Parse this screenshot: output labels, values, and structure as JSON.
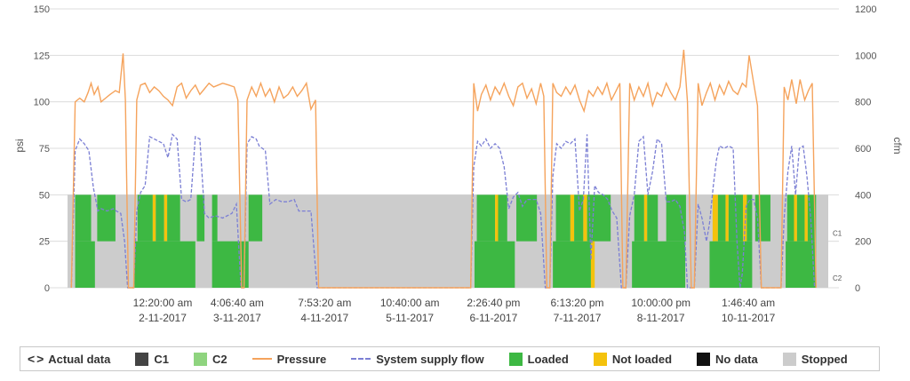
{
  "legend": {
    "actual_data": "Actual data",
    "c1": "C1",
    "c2": "C2",
    "pressure": "Pressure",
    "system_supply_flow": "System supply flow",
    "loaded": "Loaded",
    "not_loaded": "Not loaded",
    "no_data": "No data",
    "stopped": "Stopped"
  },
  "chart_data": {
    "type": "line",
    "ylabel_left": "psi",
    "ylabel_right": "cfm",
    "ylim_left": [
      0,
      150
    ],
    "ylim_right": [
      0,
      1200
    ],
    "yticks_left": [
      "0",
      "25",
      "50",
      "75",
      "100",
      "125",
      "150"
    ],
    "yticks_right": [
      "0",
      "200",
      "400",
      "600",
      "800",
      "1000",
      "1200"
    ],
    "xticks": [
      {
        "time": "12:20:00 am",
        "date": "2-11-2017"
      },
      {
        "time": "4:06:40 am",
        "date": "3-11-2017"
      },
      {
        "time": "7:53:20 am",
        "date": "4-11-2017"
      },
      {
        "time": "10:40:00 am",
        "date": "5-11-2017"
      },
      {
        "time": "2:26:40 pm",
        "date": "6-11-2017"
      },
      {
        "time": "6:13:20 pm",
        "date": "7-11-2017"
      },
      {
        "time": "10:00:00 pm",
        "date": "8-11-2017"
      },
      {
        "time": "1:46:40 am",
        "date": "10-11-2017"
      }
    ],
    "compressor_labels": [
      "C1",
      "C2"
    ],
    "colors": {
      "pressure": "#f5a35c",
      "flow": "#7b7fd4",
      "loaded": "#3db843",
      "not_loaded": "#f4c20d",
      "no_data": "#111111",
      "stopped": "#cccccc",
      "c1": "#444444",
      "c2": "#8fd47f",
      "grid": "#dcdcdc"
    },
    "x_range": [
      0,
      100
    ],
    "c1_segments": [
      {
        "start": 1.0,
        "end": 3.1,
        "state": "loaded"
      },
      {
        "start": 3.9,
        "end": 6.3,
        "state": "loaded"
      },
      {
        "start": 9.2,
        "end": 11.2,
        "state": "loaded"
      },
      {
        "start": 11.2,
        "end": 11.6,
        "state": "not_loaded"
      },
      {
        "start": 11.6,
        "end": 12.7,
        "state": "loaded"
      },
      {
        "start": 12.7,
        "end": 13.1,
        "state": "not_loaded"
      },
      {
        "start": 13.1,
        "end": 14.8,
        "state": "loaded"
      },
      {
        "start": 17.0,
        "end": 18.0,
        "state": "loaded"
      },
      {
        "start": 19.0,
        "end": 19.7,
        "state": "loaded"
      },
      {
        "start": 23.8,
        "end": 25.6,
        "state": "loaded"
      },
      {
        "start": 53.8,
        "end": 56.2,
        "state": "loaded"
      },
      {
        "start": 56.2,
        "end": 56.6,
        "state": "not_loaded"
      },
      {
        "start": 56.6,
        "end": 57.8,
        "state": "loaded"
      },
      {
        "start": 59.0,
        "end": 61.7,
        "state": "loaded"
      },
      {
        "start": 64.2,
        "end": 66.1,
        "state": "loaded"
      },
      {
        "start": 66.1,
        "end": 66.6,
        "state": "not_loaded"
      },
      {
        "start": 66.6,
        "end": 67.8,
        "state": "loaded"
      },
      {
        "start": 67.8,
        "end": 68.3,
        "state": "not_loaded"
      },
      {
        "start": 68.3,
        "end": 71.4,
        "state": "loaded"
      },
      {
        "start": 74.5,
        "end": 75.8,
        "state": "loaded"
      },
      {
        "start": 75.8,
        "end": 76.2,
        "state": "not_loaded"
      },
      {
        "start": 76.2,
        "end": 77.6,
        "state": "loaded"
      },
      {
        "start": 78.7,
        "end": 81.3,
        "state": "loaded"
      },
      {
        "start": 84.8,
        "end": 85.5,
        "state": "not_loaded"
      },
      {
        "start": 85.5,
        "end": 86.5,
        "state": "loaded"
      },
      {
        "start": 86.5,
        "end": 86.9,
        "state": "not_loaded"
      },
      {
        "start": 86.9,
        "end": 88.8,
        "state": "loaded"
      },
      {
        "start": 88.8,
        "end": 89.3,
        "state": "not_loaded"
      },
      {
        "start": 89.3,
        "end": 90.0,
        "state": "loaded"
      },
      {
        "start": 90.4,
        "end": 92.4,
        "state": "loaded"
      },
      {
        "start": 94.6,
        "end": 95.5,
        "state": "loaded"
      },
      {
        "start": 95.5,
        "end": 95.9,
        "state": "not_loaded"
      },
      {
        "start": 95.9,
        "end": 96.9,
        "state": "loaded"
      },
      {
        "start": 96.9,
        "end": 97.3,
        "state": "not_loaded"
      },
      {
        "start": 97.3,
        "end": 98.4,
        "state": "loaded"
      }
    ],
    "c2_segments": [
      {
        "start": 1.0,
        "end": 3.6,
        "state": "loaded"
      },
      {
        "start": 8.8,
        "end": 16.8,
        "state": "loaded"
      },
      {
        "start": 19.0,
        "end": 23.8,
        "state": "loaded"
      },
      {
        "start": 53.5,
        "end": 58.8,
        "state": "loaded"
      },
      {
        "start": 63.8,
        "end": 68.8,
        "state": "loaded"
      },
      {
        "start": 68.8,
        "end": 69.3,
        "state": "not_loaded"
      },
      {
        "start": 74.2,
        "end": 81.2,
        "state": "loaded"
      },
      {
        "start": 84.4,
        "end": 90.0,
        "state": "loaded"
      },
      {
        "start": 94.4,
        "end": 98.4,
        "state": "loaded"
      }
    ],
    "pressure_series": [
      [
        0.5,
        0
      ],
      [
        1.0,
        100
      ],
      [
        1.6,
        102
      ],
      [
        2.2,
        100
      ],
      [
        2.7,
        105
      ],
      [
        3.1,
        110
      ],
      [
        3.5,
        104
      ],
      [
        4.0,
        108
      ],
      [
        4.4,
        100
      ],
      [
        5.0,
        102
      ],
      [
        5.6,
        104
      ],
      [
        6.3,
        106
      ],
      [
        6.8,
        105
      ],
      [
        7.3,
        126
      ],
      [
        7.6,
        101
      ],
      [
        8.0,
        0
      ],
      [
        8.7,
        0
      ],
      [
        9.1,
        101
      ],
      [
        9.6,
        109
      ],
      [
        10.2,
        110
      ],
      [
        10.8,
        105
      ],
      [
        11.4,
        108
      ],
      [
        12.0,
        106
      ],
      [
        12.6,
        103
      ],
      [
        13.2,
        101
      ],
      [
        13.8,
        98
      ],
      [
        14.4,
        108
      ],
      [
        15.0,
        110
      ],
      [
        15.6,
        102
      ],
      [
        16.2,
        106
      ],
      [
        16.8,
        109
      ],
      [
        17.4,
        104
      ],
      [
        18.0,
        107
      ],
      [
        18.6,
        110
      ],
      [
        19.2,
        108
      ],
      [
        19.8,
        109
      ],
      [
        20.4,
        110
      ],
      [
        21.2,
        109
      ],
      [
        21.9,
        108
      ],
      [
        22.4,
        101
      ],
      [
        22.9,
        0
      ],
      [
        23.2,
        0
      ],
      [
        23.6,
        101
      ],
      [
        24.2,
        108
      ],
      [
        24.8,
        103
      ],
      [
        25.4,
        110
      ],
      [
        26.0,
        103
      ],
      [
        26.6,
        107
      ],
      [
        27.2,
        100
      ],
      [
        27.8,
        108
      ],
      [
        28.4,
        102
      ],
      [
        29.0,
        104
      ],
      [
        29.6,
        108
      ],
      [
        30.2,
        103
      ],
      [
        30.8,
        106
      ],
      [
        31.4,
        110
      ],
      [
        32.0,
        96
      ],
      [
        32.6,
        101
      ],
      [
        33.0,
        0
      ],
      [
        53.0,
        0
      ],
      [
        53.4,
        110
      ],
      [
        53.9,
        95
      ],
      [
        54.4,
        104
      ],
      [
        55.0,
        109
      ],
      [
        55.6,
        101
      ],
      [
        56.2,
        108
      ],
      [
        56.8,
        104
      ],
      [
        57.4,
        110
      ],
      [
        58.0,
        103
      ],
      [
        58.6,
        98
      ],
      [
        59.2,
        108
      ],
      [
        59.8,
        110
      ],
      [
        60.4,
        102
      ],
      [
        61.0,
        107
      ],
      [
        61.6,
        99
      ],
      [
        62.2,
        110
      ],
      [
        62.6,
        103
      ],
      [
        63.0,
        0
      ],
      [
        63.4,
        0
      ],
      [
        63.8,
        110
      ],
      [
        64.3,
        105
      ],
      [
        64.9,
        103
      ],
      [
        65.5,
        108
      ],
      [
        66.1,
        104
      ],
      [
        66.7,
        109
      ],
      [
        67.3,
        101
      ],
      [
        67.9,
        95
      ],
      [
        68.5,
        106
      ],
      [
        69.1,
        103
      ],
      [
        69.7,
        108
      ],
      [
        70.3,
        104
      ],
      [
        70.9,
        110
      ],
      [
        71.5,
        101
      ],
      [
        72.0,
        105
      ],
      [
        72.6,
        110
      ],
      [
        73.0,
        0
      ],
      [
        73.4,
        0
      ],
      [
        73.9,
        110
      ],
      [
        74.5,
        101
      ],
      [
        75.1,
        108
      ],
      [
        75.7,
        103
      ],
      [
        76.3,
        110
      ],
      [
        76.9,
        98
      ],
      [
        77.5,
        105
      ],
      [
        78.1,
        103
      ],
      [
        78.7,
        110
      ],
      [
        79.3,
        105
      ],
      [
        79.9,
        101
      ],
      [
        80.5,
        108
      ],
      [
        81.0,
        128
      ],
      [
        81.5,
        100
      ],
      [
        82.0,
        0
      ],
      [
        82.4,
        0
      ],
      [
        82.9,
        110
      ],
      [
        83.4,
        98
      ],
      [
        84.0,
        105
      ],
      [
        84.5,
        110
      ],
      [
        85.1,
        101
      ],
      [
        85.7,
        109
      ],
      [
        86.3,
        104
      ],
      [
        86.9,
        111
      ],
      [
        87.5,
        106
      ],
      [
        88.1,
        104
      ],
      [
        88.7,
        110
      ],
      [
        89.2,
        108
      ],
      [
        89.6,
        125
      ],
      [
        90.2,
        110
      ],
      [
        90.7,
        98
      ],
      [
        91.2,
        0
      ],
      [
        93.8,
        0
      ],
      [
        94.2,
        108
      ],
      [
        94.7,
        101
      ],
      [
        95.2,
        112
      ],
      [
        95.8,
        99
      ],
      [
        96.3,
        112
      ],
      [
        96.9,
        101
      ],
      [
        97.4,
        106
      ],
      [
        97.9,
        110
      ],
      [
        98.4,
        0
      ]
    ],
    "flow_series": [
      [
        0.5,
        0
      ],
      [
        1.0,
        590
      ],
      [
        1.6,
        640
      ],
      [
        2.2,
        620
      ],
      [
        2.8,
        590
      ],
      [
        3.4,
        430
      ],
      [
        4.0,
        330
      ],
      [
        4.4,
        340
      ],
      [
        5.2,
        330
      ],
      [
        6.0,
        340
      ],
      [
        6.4,
        330
      ],
      [
        7.0,
        320
      ],
      [
        7.5,
        200
      ],
      [
        7.9,
        0
      ],
      [
        8.7,
        0
      ],
      [
        9.1,
        330
      ],
      [
        9.6,
        410
      ],
      [
        10.2,
        440
      ],
      [
        10.8,
        650
      ],
      [
        11.4,
        640
      ],
      [
        12.0,
        630
      ],
      [
        12.6,
        620
      ],
      [
        13.2,
        560
      ],
      [
        13.8,
        660
      ],
      [
        14.4,
        640
      ],
      [
        15.0,
        380
      ],
      [
        15.6,
        370
      ],
      [
        16.2,
        380
      ],
      [
        16.8,
        650
      ],
      [
        17.4,
        640
      ],
      [
        18.0,
        320
      ],
      [
        18.6,
        300
      ],
      [
        19.4,
        310
      ],
      [
        20.4,
        300
      ],
      [
        21.6,
        320
      ],
      [
        22.2,
        360
      ],
      [
        22.8,
        0
      ],
      [
        23.2,
        0
      ],
      [
        23.6,
        620
      ],
      [
        24.2,
        650
      ],
      [
        24.8,
        640
      ],
      [
        25.2,
        610
      ],
      [
        26.0,
        590
      ],
      [
        26.6,
        360
      ],
      [
        27.4,
        380
      ],
      [
        28.2,
        370
      ],
      [
        29.0,
        370
      ],
      [
        29.8,
        380
      ],
      [
        30.4,
        330
      ],
      [
        31.2,
        330
      ],
      [
        32.0,
        330
      ],
      [
        32.8,
        0
      ],
      [
        53.0,
        0
      ],
      [
        53.4,
        520
      ],
      [
        53.9,
        630
      ],
      [
        54.4,
        610
      ],
      [
        55.0,
        640
      ],
      [
        55.6,
        600
      ],
      [
        56.2,
        620
      ],
      [
        56.8,
        600
      ],
      [
        57.4,
        520
      ],
      [
        58.0,
        340
      ],
      [
        58.6,
        390
      ],
      [
        59.2,
        410
      ],
      [
        59.8,
        350
      ],
      [
        60.4,
        380
      ],
      [
        61.0,
        380
      ],
      [
        61.6,
        380
      ],
      [
        62.2,
        320
      ],
      [
        62.8,
        0
      ],
      [
        63.4,
        0
      ],
      [
        63.8,
        480
      ],
      [
        64.3,
        620
      ],
      [
        64.9,
        600
      ],
      [
        65.5,
        630
      ],
      [
        66.1,
        620
      ],
      [
        66.7,
        640
      ],
      [
        67.3,
        330
      ],
      [
        67.8,
        380
      ],
      [
        68.3,
        660
      ],
      [
        68.8,
        120
      ],
      [
        69.3,
        440
      ],
      [
        69.8,
        410
      ],
      [
        70.4,
        400
      ],
      [
        71.0,
        380
      ],
      [
        71.6,
        330
      ],
      [
        72.2,
        300
      ],
      [
        72.8,
        0
      ],
      [
        73.4,
        0
      ],
      [
        73.9,
        310
      ],
      [
        74.5,
        400
      ],
      [
        75.1,
        630
      ],
      [
        75.7,
        650
      ],
      [
        76.3,
        400
      ],
      [
        76.9,
        500
      ],
      [
        77.5,
        640
      ],
      [
        78.1,
        620
      ],
      [
        78.7,
        370
      ],
      [
        79.3,
        370
      ],
      [
        79.9,
        380
      ],
      [
        80.5,
        350
      ],
      [
        81.1,
        240
      ],
      [
        81.5,
        0
      ],
      [
        82.4,
        0
      ],
      [
        82.9,
        360
      ],
      [
        83.4,
        300
      ],
      [
        84.0,
        200
      ],
      [
        84.4,
        280
      ],
      [
        84.9,
        440
      ],
      [
        85.3,
        550
      ],
      [
        85.7,
        610
      ],
      [
        86.3,
        600
      ],
      [
        86.9,
        610
      ],
      [
        87.5,
        600
      ],
      [
        88.0,
        200
      ],
      [
        88.4,
        0
      ],
      [
        88.7,
        60
      ],
      [
        89.2,
        350
      ],
      [
        89.7,
        380
      ],
      [
        90.2,
        380
      ],
      [
        90.7,
        300
      ],
      [
        91.2,
        0
      ],
      [
        93.8,
        0
      ],
      [
        94.2,
        300
      ],
      [
        94.7,
        500
      ],
      [
        95.2,
        610
      ],
      [
        95.7,
        400
      ],
      [
        96.2,
        600
      ],
      [
        96.7,
        610
      ],
      [
        97.2,
        480
      ],
      [
        97.7,
        300
      ],
      [
        98.2,
        0
      ]
    ]
  }
}
